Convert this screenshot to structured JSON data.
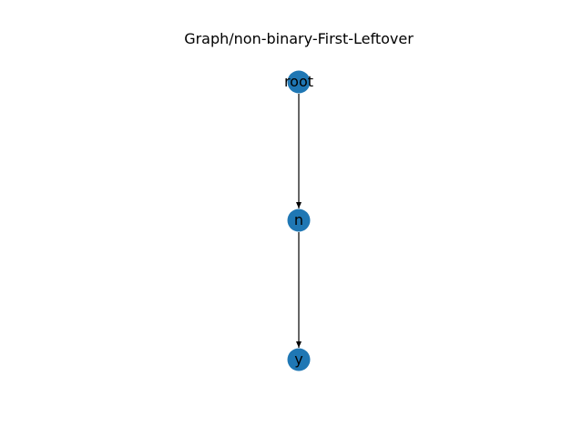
{
  "title": "Graph/non-binary-First-Leftover",
  "colors": {
    "node": "#1f77b4",
    "edge": "#000000",
    "label": "#000000",
    "background": "#ffffff"
  },
  "nodes": [
    {
      "id": "root",
      "label": "root"
    },
    {
      "id": "n",
      "label": "n"
    },
    {
      "id": "y",
      "label": "y"
    }
  ],
  "edges": [
    {
      "from": "root",
      "to": "n"
    },
    {
      "from": "n",
      "to": "y"
    }
  ]
}
